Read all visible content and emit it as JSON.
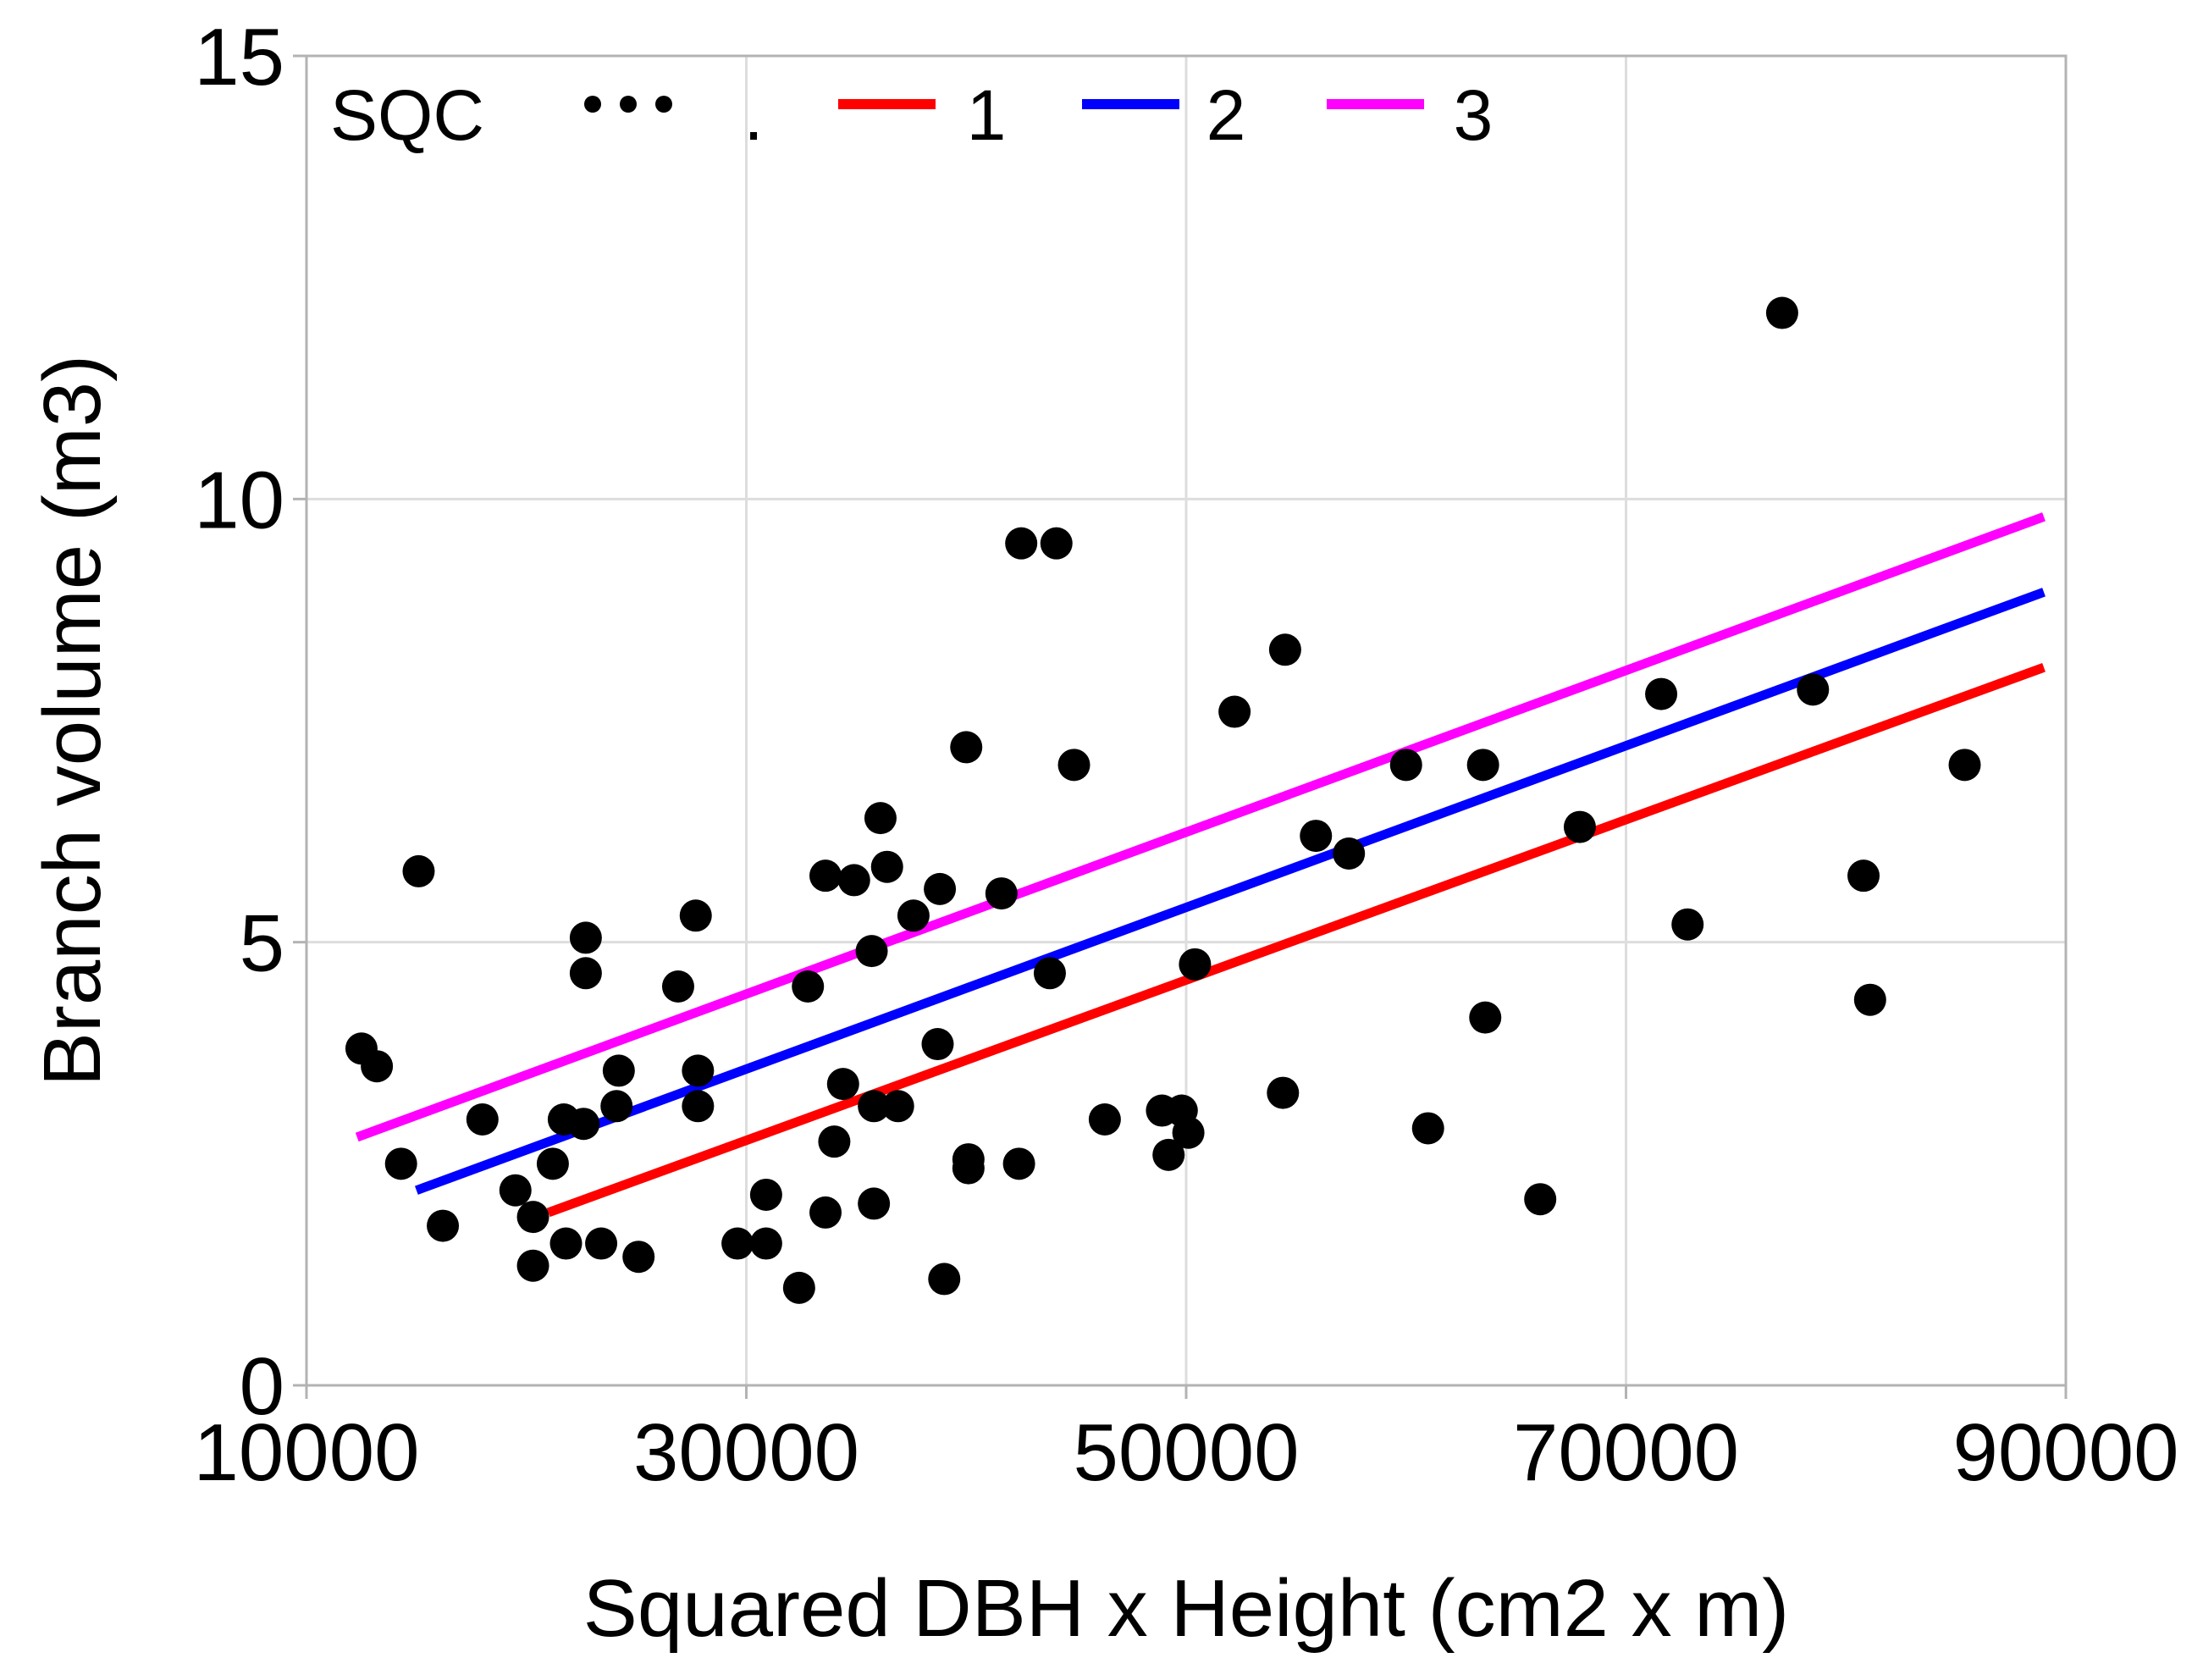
{
  "chart_data": {
    "type": "scatter",
    "title": "",
    "xlabel": "Squared DBH x Height (cm2 x m)",
    "ylabel": "Branch volume (m3)",
    "xlim": [
      10000,
      90000
    ],
    "ylim": [
      0,
      15
    ],
    "xticks": [
      10000,
      30000,
      50000,
      70000,
      90000
    ],
    "yticks": [
      0,
      5,
      10,
      15
    ],
    "xtick_labels": [
      "10000",
      "30000",
      "50000",
      "70000",
      "90000"
    ],
    "ytick_labels": [
      "0",
      "5",
      "10",
      "15"
    ],
    "grid": true,
    "legend": {
      "position": "top-left",
      "title": "SQC",
      "entries": [
        {
          "label": ".",
          "kind": "points",
          "color": "#000000"
        },
        {
          "label": "1",
          "kind": "line",
          "color": "#ff0000"
        },
        {
          "label": "2",
          "kind": "line",
          "color": "#0000ff"
        },
        {
          "label": "3",
          "kind": "line",
          "color": "#ff00ff"
        }
      ]
    },
    "points": [
      [
        12500,
        3.8
      ],
      [
        13200,
        3.6
      ],
      [
        14300,
        2.5
      ],
      [
        15100,
        5.8
      ],
      [
        16200,
        1.8
      ],
      [
        18000,
        3.0
      ],
      [
        19500,
        2.2
      ],
      [
        20300,
        1.9
      ],
      [
        20300,
        1.35
      ],
      [
        21200,
        2.5
      ],
      [
        21700,
        3.0
      ],
      [
        21800,
        1.6
      ],
      [
        22600,
        2.95
      ],
      [
        22700,
        5.05
      ],
      [
        22700,
        4.65
      ],
      [
        23400,
        1.6
      ],
      [
        24100,
        3.15
      ],
      [
        24200,
        3.55
      ],
      [
        25100,
        1.45
      ],
      [
        26900,
        4.5
      ],
      [
        27700,
        5.3
      ],
      [
        27800,
        3.15
      ],
      [
        27800,
        3.55
      ],
      [
        29600,
        1.6
      ],
      [
        30900,
        1.6
      ],
      [
        30900,
        2.15
      ],
      [
        32400,
        1.1
      ],
      [
        32800,
        4.5
      ],
      [
        33600,
        1.95
      ],
      [
        33600,
        5.75
      ],
      [
        34000,
        2.75
      ],
      [
        34400,
        3.4
      ],
      [
        34900,
        5.7
      ],
      [
        35700,
        4.9
      ],
      [
        35800,
        3.15
      ],
      [
        35800,
        2.05
      ],
      [
        36100,
        6.4
      ],
      [
        36400,
        5.85
      ],
      [
        36900,
        3.15
      ],
      [
        37600,
        5.3
      ],
      [
        38700,
        3.85
      ],
      [
        38800,
        5.6
      ],
      [
        39000,
        1.2
      ],
      [
        40000,
        7.2
      ],
      [
        40100,
        2.45
      ],
      [
        40100,
        2.55
      ],
      [
        41600,
        5.55
      ],
      [
        42400,
        2.5
      ],
      [
        42500,
        9.5
      ],
      [
        43800,
        4.65
      ],
      [
        44100,
        9.5
      ],
      [
        44900,
        7.0
      ],
      [
        46300,
        3.0
      ],
      [
        48900,
        3.1
      ],
      [
        49200,
        2.6
      ],
      [
        49800,
        3.1
      ],
      [
        50100,
        2.85
      ],
      [
        50400,
        4.75
      ],
      [
        52200,
        7.6
      ],
      [
        54400,
        3.3
      ],
      [
        54500,
        8.3
      ],
      [
        55900,
        6.2
      ],
      [
        57400,
        6.0
      ],
      [
        60000,
        7.0
      ],
      [
        61000,
        2.9
      ],
      [
        63500,
        7.0
      ],
      [
        63600,
        4.15
      ],
      [
        66100,
        2.1
      ],
      [
        67900,
        6.3
      ],
      [
        71600,
        7.8
      ],
      [
        72800,
        5.2
      ],
      [
        77100,
        12.1
      ],
      [
        78500,
        7.85
      ],
      [
        80800,
        5.75
      ],
      [
        81100,
        4.35
      ],
      [
        85400,
        7.0
      ]
    ],
    "series": [
      {
        "name": "1",
        "color": "#ff0000",
        "x": [
          21000,
          89000
        ],
        "y": [
          1.95,
          8.1
        ]
      },
      {
        "name": "2",
        "color": "#0000ff",
        "x": [
          15000,
          89000
        ],
        "y": [
          2.2,
          8.95
        ]
      },
      {
        "name": "3",
        "color": "#ff00ff",
        "x": [
          12300,
          89000
        ],
        "y": [
          2.8,
          9.8
        ]
      }
    ]
  }
}
